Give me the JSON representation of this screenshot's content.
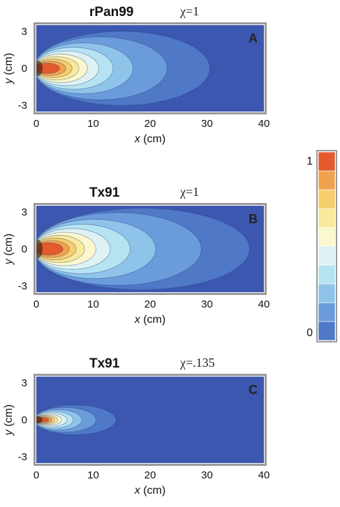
{
  "colors": {
    "levels": [
      "#3b57b0",
      "#4f78c7",
      "#6a9cdb",
      "#8ec4ea",
      "#b6e3f1",
      "#def2f4",
      "#fbf7cf",
      "#f9e99a",
      "#f6ce6e",
      "#f0a34d",
      "#e25a2d"
    ],
    "frame": "#9a9a9a"
  },
  "colorbar": {
    "max_label": "1",
    "min_label": "0"
  },
  "chart_data": [
    {
      "type": "heatmap",
      "panel": "A",
      "title": "rPan99",
      "chi_label": "χ=1",
      "xlabel": "x (cm)",
      "ylabel": "y (cm)",
      "xlim": [
        0,
        40
      ],
      "ylim": [
        -3.5,
        3.5
      ],
      "xticks": [
        "0",
        "10",
        "20",
        "30",
        "40"
      ],
      "yticks": [
        "3",
        "0",
        "-3"
      ],
      "contour_extents_x": [
        30,
        22.5,
        16.5,
        13,
        10.5,
        8.5,
        7,
        5.8,
        4.7,
        3.6
      ],
      "contour_halfwidths_y": [
        3.0,
        2.55,
        2.05,
        1.7,
        1.4,
        1.15,
        0.95,
        0.75,
        0.58,
        0.42
      ]
    },
    {
      "type": "heatmap",
      "panel": "B",
      "title": "Tx91",
      "chi_label": "χ=1",
      "xlabel": "x (cm)",
      "ylabel": "y (cm)",
      "xlim": [
        0,
        40
      ],
      "ylim": [
        -3.5,
        3.5
      ],
      "xticks": [
        "0",
        "10",
        "20",
        "30",
        "40"
      ],
      "yticks": [
        "3",
        "0",
        "-3"
      ],
      "contour_extents_x": [
        37,
        28.5,
        20.5,
        16,
        12.5,
        10,
        8,
        6.5,
        5.3,
        4.2
      ],
      "contour_halfwidths_y": [
        3.3,
        2.95,
        2.4,
        2.0,
        1.65,
        1.35,
        1.1,
        0.88,
        0.68,
        0.5
      ]
    },
    {
      "type": "heatmap",
      "panel": "C",
      "title": "Tx91",
      "chi_label": "χ=.135",
      "xlabel": "x (cm)",
      "ylabel": "y (cm)",
      "xlim": [
        0,
        40
      ],
      "ylim": [
        -3.5,
        3.5
      ],
      "xticks": [
        "0",
        "10",
        "20",
        "30",
        "40"
      ],
      "yticks": [
        "3",
        "0",
        "-3"
      ],
      "contour_extents_x": [
        13.5,
        10,
        7.5,
        6,
        4.9,
        4,
        3.3,
        2.7,
        2.2,
        1.7
      ],
      "contour_halfwidths_y": [
        1.2,
        1.0,
        0.82,
        0.68,
        0.56,
        0.46,
        0.38,
        0.31,
        0.25,
        0.19
      ]
    }
  ]
}
